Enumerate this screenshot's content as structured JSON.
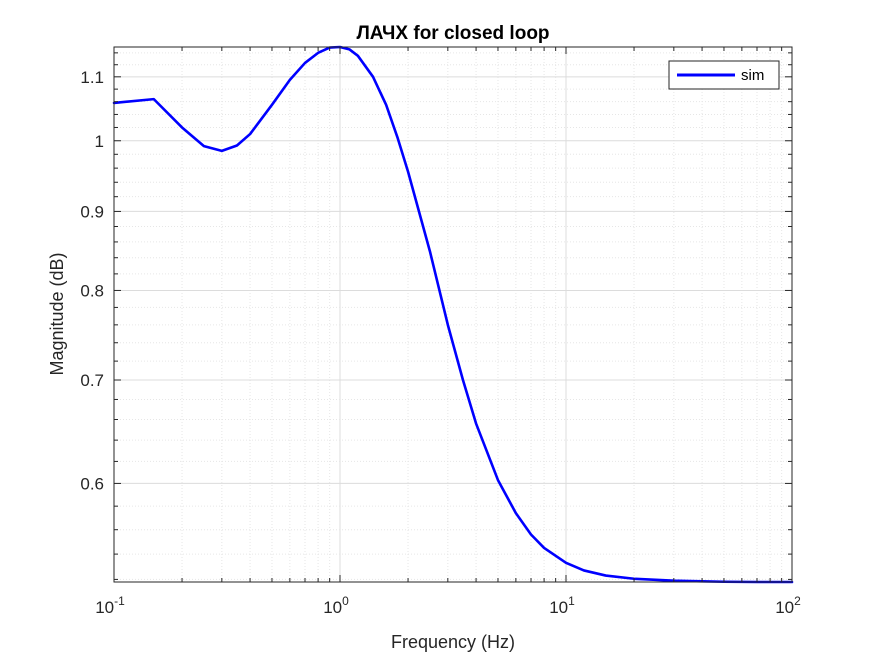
{
  "chart_data": {
    "type": "line",
    "title": "ЛАЧХ for closed loop",
    "xlabel": "Frequency (Hz)",
    "ylabel": "Magnitude (dB)",
    "xscale": "log",
    "yscale": "log",
    "xlim": [
      0.1,
      100
    ],
    "ylim": [
      0.518,
      1.15
    ],
    "grid": true,
    "legend_position": "top-right",
    "x_ticks": [
      {
        "value": 0.1,
        "base": "10",
        "exp": "-1"
      },
      {
        "value": 1,
        "base": "10",
        "exp": "0"
      },
      {
        "value": 10,
        "base": "10",
        "exp": "1"
      },
      {
        "value": 100,
        "base": "10",
        "exp": "2"
      }
    ],
    "y_ticks": [
      {
        "value": 0.6,
        "label": "0.6"
      },
      {
        "value": 0.7,
        "label": "0.7"
      },
      {
        "value": 0.8,
        "label": "0.8"
      },
      {
        "value": 0.9,
        "label": "0.9"
      },
      {
        "value": 1.0,
        "label": "1"
      },
      {
        "value": 1.1,
        "label": "1.1"
      }
    ],
    "series": [
      {
        "name": "sim",
        "color": "#0000ff",
        "x": [
          0.1,
          0.15,
          0.2,
          0.25,
          0.3,
          0.35,
          0.4,
          0.5,
          0.6,
          0.7,
          0.8,
          0.9,
          1.0,
          1.1,
          1.2,
          1.4,
          1.6,
          1.8,
          2.0,
          2.5,
          3.0,
          3.5,
          4.0,
          5.0,
          6.0,
          7.0,
          8.0,
          10,
          12,
          15,
          20,
          30,
          40,
          50,
          70,
          100
        ],
        "y": [
          1.058,
          1.064,
          1.02,
          0.992,
          0.985,
          0.993,
          1.01,
          1.055,
          1.095,
          1.123,
          1.14,
          1.149,
          1.15,
          1.146,
          1.135,
          1.1,
          1.055,
          1.004,
          0.955,
          0.848,
          0.76,
          0.7,
          0.656,
          0.603,
          0.574,
          0.556,
          0.545,
          0.533,
          0.527,
          0.523,
          0.5205,
          0.519,
          0.5185,
          0.5182,
          0.518,
          0.518
        ]
      }
    ]
  }
}
